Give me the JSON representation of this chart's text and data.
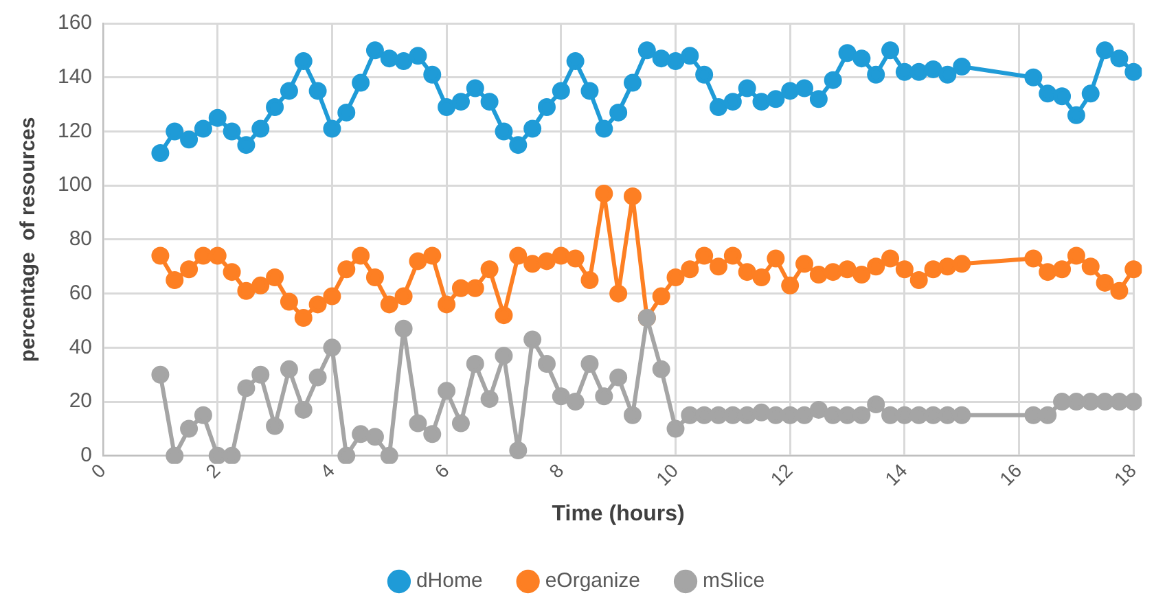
{
  "chart_data": {
    "type": "line",
    "xlabel": "Time (hours)",
    "ylabel": "percentage  of resources",
    "x": [
      1,
      1.25,
      1.5,
      1.75,
      2,
      2.25,
      2.5,
      2.75,
      3,
      3.25,
      3.5,
      3.75,
      4,
      4.25,
      4.5,
      4.75,
      5,
      5.25,
      5.5,
      5.75,
      6,
      6.25,
      6.5,
      6.75,
      7,
      7.25,
      7.5,
      7.75,
      8,
      8.25,
      8.5,
      8.75,
      9,
      9.25,
      9.5,
      9.75,
      10,
      10.25,
      10.5,
      10.75,
      11,
      11.25,
      11.5,
      11.75,
      12,
      12.25,
      12.5,
      12.75,
      13,
      13.25,
      13.5,
      13.75,
      14,
      14.25,
      14.5,
      14.75,
      15,
      16.25,
      16.5,
      16.75,
      17,
      17.25,
      17.5,
      17.75,
      18
    ],
    "series": [
      {
        "name": "dHome",
        "color": "#1f9bd7",
        "values": [
          112,
          120,
          117,
          121,
          125,
          120,
          115,
          121,
          129,
          135,
          146,
          135,
          121,
          127,
          138,
          150,
          147,
          146,
          148,
          141,
          129,
          131,
          136,
          131,
          120,
          115,
          121,
          129,
          135,
          146,
          135,
          121,
          127,
          138,
          150,
          147,
          146,
          148,
          141,
          129,
          131,
          136,
          131,
          132,
          135,
          136,
          132,
          139,
          149,
          147,
          141,
          150,
          142,
          142,
          143,
          141,
          144,
          140,
          134,
          133,
          126,
          134,
          150,
          147,
          142
        ]
      },
      {
        "name": "eOrganize",
        "color": "#fd7f23",
        "values": [
          74,
          65,
          69,
          74,
          74,
          68,
          61,
          63,
          66,
          57,
          51,
          56,
          59,
          69,
          74,
          66,
          56,
          59,
          72,
          74,
          56,
          62,
          62,
          69,
          52,
          74,
          71,
          72,
          74,
          73,
          65,
          97,
          60,
          96,
          51,
          59,
          66,
          69,
          74,
          70,
          74,
          68,
          66,
          73,
          63,
          71,
          67,
          68,
          69,
          67,
          70,
          73,
          69,
          65,
          69,
          70,
          71,
          73,
          68,
          69,
          74,
          70,
          64,
          61,
          69
        ]
      },
      {
        "name": "mSlice",
        "color": "#a5a5a5",
        "values": [
          30,
          0,
          10,
          15,
          0,
          0,
          25,
          30,
          11,
          32,
          17,
          29,
          40,
          0,
          8,
          7,
          0,
          47,
          12,
          8,
          24,
          12,
          34,
          21,
          37,
          2,
          43,
          34,
          22,
          20,
          34,
          22,
          29,
          15,
          51,
          32,
          10,
          15,
          15,
          15,
          15,
          15,
          16,
          15,
          15,
          15,
          17,
          15,
          15,
          15,
          19,
          15,
          15,
          15,
          15,
          15,
          15,
          15,
          15,
          20,
          20,
          20,
          20,
          20,
          20
        ]
      }
    ],
    "xlim": [
      0,
      18
    ],
    "xticks": [
      0,
      2,
      4,
      6,
      8,
      10,
      12,
      14,
      16,
      18
    ],
    "ylim": [
      0,
      160
    ],
    "yticks": [
      0,
      20,
      40,
      60,
      80,
      100,
      120,
      140,
      160
    ],
    "grid": true,
    "legend": "bottom",
    "marker": "circle",
    "line_style": "solid"
  }
}
